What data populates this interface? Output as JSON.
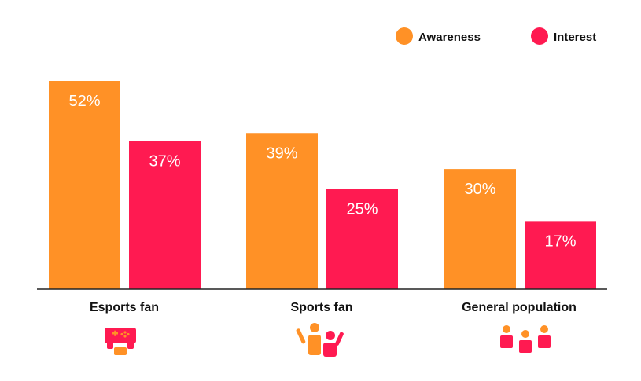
{
  "chart_data": {
    "type": "bar",
    "categories": [
      "Esports fan",
      "Sports fan",
      "General population"
    ],
    "series": [
      {
        "name": "Awareness",
        "values": [
          52,
          39,
          30
        ],
        "color": "#FF9126"
      },
      {
        "name": "Interest",
        "values": [
          37,
          25,
          17
        ],
        "color": "#FF1A51"
      }
    ],
    "value_suffix": "%",
    "ylim": [
      0,
      52
    ],
    "grid": false,
    "legend_position": "top-right",
    "category_icons": [
      "game-controller-icon",
      "sports-fans-icon",
      "people-group-icon"
    ]
  }
}
